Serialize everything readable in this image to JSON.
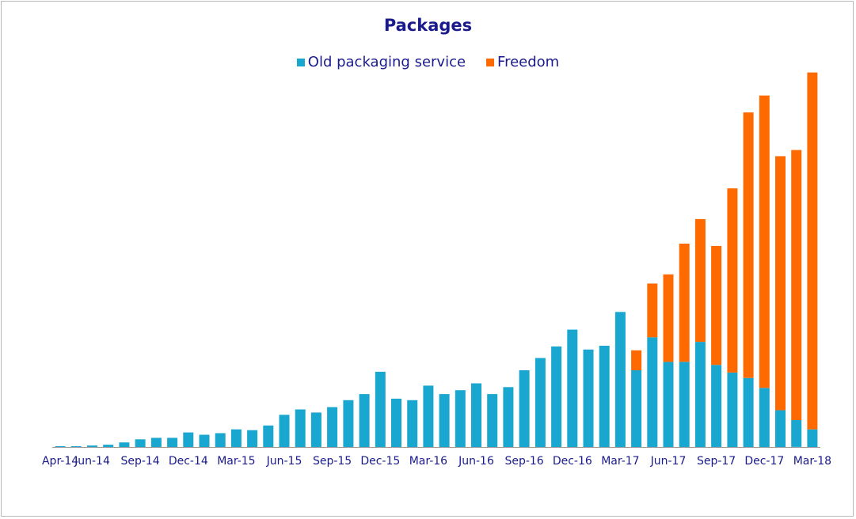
{
  "chart_data": {
    "type": "bar",
    "stacked": true,
    "title": "Packages",
    "legend_position": "top",
    "categories": [
      "Apr-14",
      "May-14",
      "Jun-14",
      "Jul-14",
      "Aug-14",
      "Sep-14",
      "Oct-14",
      "Nov-14",
      "Dec-14",
      "Jan-15",
      "Feb-15",
      "Mar-15",
      "Apr-15",
      "May-15",
      "Jun-15",
      "Jul-15",
      "Aug-15",
      "Sep-15",
      "Oct-15",
      "Nov-15",
      "Dec-15",
      "Jan-16",
      "Feb-16",
      "Mar-16",
      "Apr-16",
      "May-16",
      "Jun-16",
      "Jul-16",
      "Aug-16",
      "Sep-16",
      "Oct-16",
      "Nov-16",
      "Dec-16",
      "Jan-17",
      "Feb-17",
      "Mar-17",
      "Apr-17",
      "May-17",
      "Jun-17",
      "Jul-17",
      "Aug-17",
      "Sep-17",
      "Oct-17",
      "Nov-17",
      "Dec-17",
      "Jan-18",
      "Feb-18",
      "Mar-18"
    ],
    "tick_labels": [
      "Apr-14",
      "Jun-14",
      "Sep-14",
      "Dec-14",
      "Mar-15",
      "Jun-15",
      "Sep-15",
      "Dec-15",
      "Mar-16",
      "Jun-16",
      "Sep-16",
      "Dec-16",
      "Mar-17",
      "Jun-17",
      "Sep-17",
      "Dec-17",
      "Mar-18"
    ],
    "series": [
      {
        "name": "Old packaging service",
        "color": "#1aa7cf",
        "values": [
          1,
          1,
          2,
          3,
          6,
          10,
          12,
          12,
          19,
          16,
          18,
          23,
          22,
          28,
          42,
          49,
          45,
          52,
          61,
          69,
          98,
          63,
          61,
          80,
          69,
          74,
          83,
          69,
          78,
          100,
          116,
          131,
          153,
          127,
          132,
          176,
          100,
          143,
          111,
          111,
          137,
          107,
          97,
          90,
          77,
          48,
          35,
          23
        ]
      },
      {
        "name": "Freedom",
        "color": "#ff6a00",
        "values": [
          0,
          0,
          0,
          0,
          0,
          0,
          0,
          0,
          0,
          0,
          0,
          0,
          0,
          0,
          0,
          0,
          0,
          0,
          0,
          0,
          0,
          0,
          0,
          0,
          0,
          0,
          0,
          0,
          0,
          0,
          0,
          0,
          0,
          0,
          0,
          0,
          26,
          70,
          114,
          154,
          160,
          155,
          240,
          346,
          381,
          331,
          352,
          465
        ]
      }
    ],
    "ylim": [
      0,
      500
    ],
    "grid": false
  }
}
